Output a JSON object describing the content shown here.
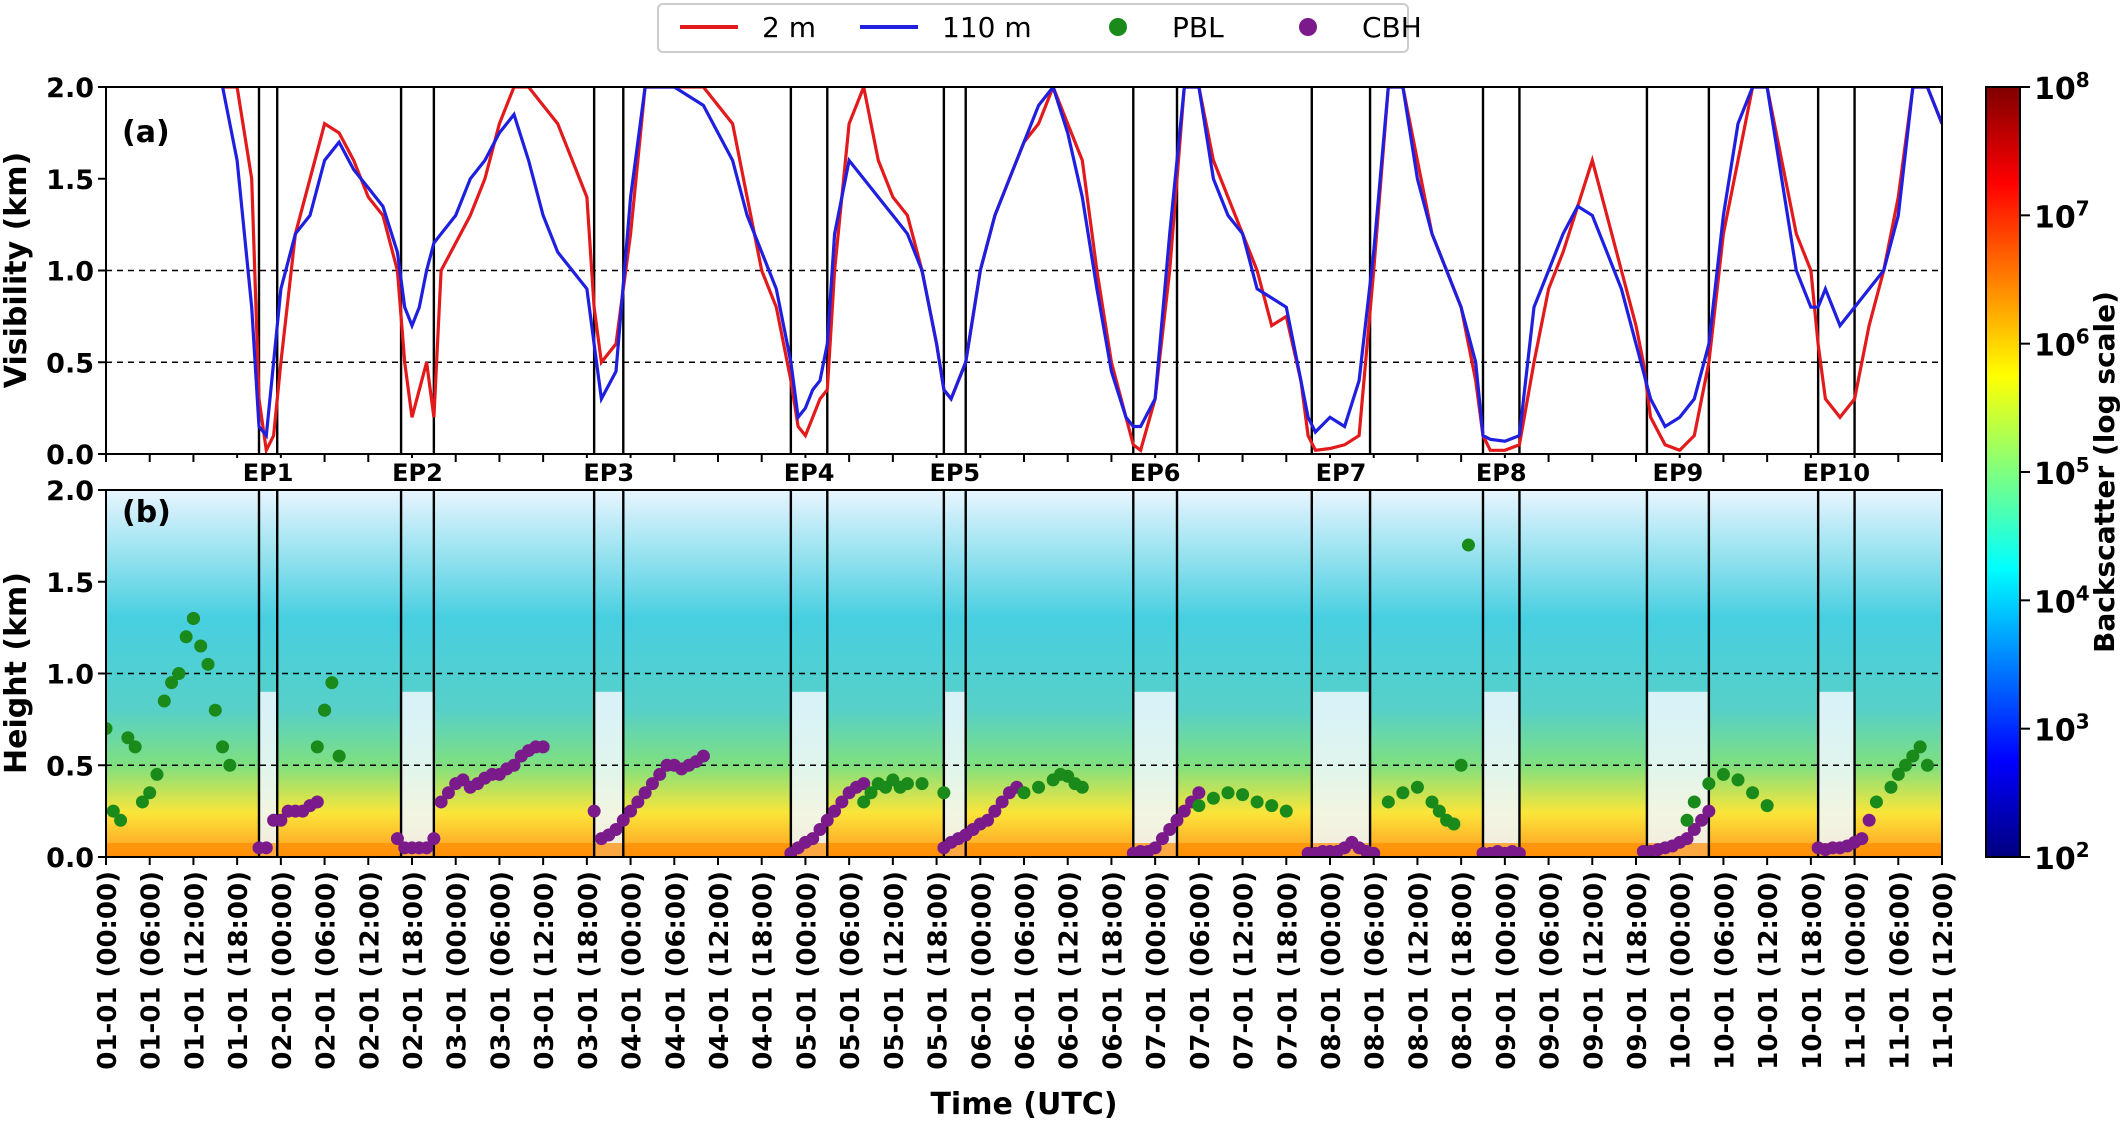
{
  "legend": {
    "placement": "top-center",
    "items": [
      {
        "name": "2 m",
        "kind": "line",
        "color": "#e31a1c"
      },
      {
        "name": "110 m",
        "kind": "line",
        "color": "#1f1fe0"
      },
      {
        "name": "PBL",
        "kind": "marker",
        "color": "#1a8a1a"
      },
      {
        "name": "CBH",
        "kind": "marker",
        "color": "#7b1a8a"
      }
    ]
  },
  "panel_a": {
    "label": "(a)",
    "ylabel": "Visibility (km)",
    "ylim": [
      0,
      2.0
    ],
    "yticks": [
      "0.0",
      "0.5",
      "1.0",
      "1.5",
      "2.0"
    ],
    "ytick_values": [
      0,
      0.5,
      1.0,
      1.5,
      2.0
    ],
    "dashed_lines": [
      0.5,
      1.0
    ]
  },
  "panel_b": {
    "label": "(b)",
    "ylabel": "Height (km)",
    "ylim": [
      0,
      2.0
    ],
    "yticks": [
      "0.0",
      "0.5",
      "1.0",
      "1.5",
      "2.0"
    ],
    "ytick_values": [
      0,
      0.5,
      1.0,
      1.5,
      2.0
    ],
    "dashed_lines": [
      0.5,
      1.0
    ]
  },
  "xaxis": {
    "title": "Time (UTC)",
    "range_hours": [
      0,
      252
    ],
    "tick_labels": [
      "01-01 (00:00)",
      "01-01 (06:00)",
      "01-01 (12:00)",
      "01-01 (18:00)",
      "02-01 (00:00)",
      "02-01 (06:00)",
      "02-01 (12:00)",
      "02-01 (18:00)",
      "03-01 (00:00)",
      "03-01 (06:00)",
      "03-01 (12:00)",
      "03-01 (18:00)",
      "04-01 (00:00)",
      "04-01 (06:00)",
      "04-01 (12:00)",
      "04-01 (18:00)",
      "05-01 (00:00)",
      "05-01 (06:00)",
      "05-01 (12:00)",
      "05-01 (18:00)",
      "06-01 (00:00)",
      "06-01 (06:00)",
      "06-01 (12:00)",
      "06-01 (18:00)",
      "07-01 (00:00)",
      "07-01 (06:00)",
      "07-01 (12:00)",
      "07-01 (18:00)",
      "08-01 (00:00)",
      "08-01 (06:00)",
      "08-01 (12:00)",
      "08-01 (18:00)",
      "09-01 (00:00)",
      "09-01 (06:00)",
      "09-01 (12:00)",
      "09-01 (18:00)",
      "10-01 (00:00)",
      "10-01 (06:00)",
      "10-01 (12:00)",
      "10-01 (18:00)",
      "11-01 (00:00)",
      "11-01 (06:00)",
      "11-01 (12:00)"
    ]
  },
  "colorbar": {
    "label": "Backscatter (log scale)",
    "scale": "log",
    "range": [
      100,
      100000000
    ],
    "ticks": [
      {
        "base": "10",
        "exp": "2"
      },
      {
        "base": "10",
        "exp": "3"
      },
      {
        "base": "10",
        "exp": "4"
      },
      {
        "base": "10",
        "exp": "5"
      },
      {
        "base": "10",
        "exp": "6"
      },
      {
        "base": "10",
        "exp": "7"
      },
      {
        "base": "10",
        "exp": "8"
      }
    ],
    "colormap": [
      "#00007f",
      "#0000ff",
      "#007fff",
      "#00ffff",
      "#7fff7f",
      "#ffff00",
      "#ff7f00",
      "#ff0000",
      "#7f0000"
    ]
  },
  "chart_data": {
    "type": "line",
    "x_unit": "hours",
    "episodes": [
      {
        "label": "EP1",
        "start": 21,
        "end": 23.5
      },
      {
        "label": "EP2",
        "start": 40.5,
        "end": 45
      },
      {
        "label": "EP3",
        "start": 67,
        "end": 71
      },
      {
        "label": "EP4",
        "start": 94,
        "end": 99
      },
      {
        "label": "EP5",
        "start": 115,
        "end": 118
      },
      {
        "label": "EP6",
        "start": 141,
        "end": 147
      },
      {
        "label": "EP7",
        "start": 165.5,
        "end": 173.5
      },
      {
        "label": "EP8",
        "start": 189,
        "end": 194
      },
      {
        "label": "EP9",
        "start": 211.5,
        "end": 220
      },
      {
        "label": "EP10",
        "start": 235,
        "end": 240
      }
    ],
    "series": [
      {
        "name": "2 m",
        "x": [
          16,
          18,
          20,
          21,
          22,
          23,
          24,
          26,
          28,
          30,
          32,
          34,
          36,
          38,
          40,
          41,
          42,
          43,
          44,
          45,
          46,
          48,
          50,
          52,
          54,
          56,
          58,
          60,
          62,
          64,
          66,
          67,
          68,
          70,
          72,
          74,
          78,
          82,
          86,
          88,
          90,
          92,
          94,
          95,
          96,
          97,
          98,
          99,
          100,
          102,
          104,
          106,
          108,
          110,
          112,
          114,
          115,
          116,
          117,
          118,
          120,
          122,
          124,
          126,
          128,
          130,
          132,
          134,
          136,
          138,
          140,
          141,
          142,
          144,
          146,
          148,
          150,
          152,
          154,
          156,
          158,
          160,
          162,
          164,
          165,
          166,
          168,
          170,
          172,
          174,
          176,
          178,
          180,
          182,
          184,
          186,
          188,
          189,
          190,
          192,
          194,
          196,
          198,
          200,
          202,
          204,
          206,
          208,
          210,
          211,
          212,
          214,
          216,
          218,
          220,
          222,
          224,
          226,
          228,
          230,
          232,
          234,
          235,
          236,
          238,
          240,
          242,
          244,
          246,
          248,
          250,
          252
        ],
        "y": [
          2.0,
          2.0,
          1.5,
          0.3,
          0.02,
          0.1,
          0.5,
          1.2,
          1.5,
          1.8,
          1.75,
          1.6,
          1.4,
          1.3,
          1.0,
          0.5,
          0.2,
          0.35,
          0.5,
          0.2,
          1.0,
          1.15,
          1.3,
          1.5,
          1.8,
          2.0,
          2.0,
          1.9,
          1.8,
          1.6,
          1.4,
          0.8,
          0.5,
          0.6,
          1.2,
          2.0,
          2.0,
          2.0,
          1.8,
          1.4,
          1.0,
          0.8,
          0.4,
          0.15,
          0.1,
          0.2,
          0.3,
          0.35,
          1.0,
          1.8,
          2.0,
          1.6,
          1.4,
          1.3,
          1.0,
          0.6,
          0.35,
          0.3,
          0.4,
          0.5,
          1.0,
          1.3,
          1.5,
          1.7,
          1.8,
          2.0,
          1.8,
          1.6,
          1.0,
          0.5,
          0.2,
          0.05,
          0.02,
          0.3,
          1.0,
          2.0,
          2.0,
          1.6,
          1.4,
          1.2,
          1.0,
          0.7,
          0.75,
          0.4,
          0.1,
          0.02,
          0.03,
          0.05,
          0.1,
          1.0,
          2.0,
          2.0,
          1.6,
          1.2,
          1.0,
          0.8,
          0.4,
          0.1,
          0.02,
          0.02,
          0.05,
          0.5,
          0.9,
          1.1,
          1.35,
          1.6,
          1.3,
          1.0,
          0.7,
          0.5,
          0.2,
          0.05,
          0.02,
          0.1,
          0.5,
          1.2,
          1.6,
          2.0,
          2.0,
          1.6,
          1.2,
          1.0,
          0.6,
          0.3,
          0.2,
          0.3,
          0.7,
          1.0,
          1.4,
          2.0,
          2.0,
          1.8
        ]
      },
      {
        "name": "110 m",
        "x": [
          16,
          18,
          20,
          21,
          22,
          23,
          24,
          26,
          28,
          30,
          32,
          34,
          36,
          38,
          40,
          41,
          42,
          43,
          44,
          45,
          46,
          48,
          50,
          52,
          54,
          56,
          58,
          60,
          62,
          64,
          66,
          67,
          68,
          70,
          72,
          74,
          78,
          82,
          86,
          88,
          90,
          92,
          94,
          95,
          96,
          97,
          98,
          99,
          100,
          102,
          104,
          106,
          108,
          110,
          112,
          114,
          115,
          116,
          117,
          118,
          120,
          122,
          124,
          126,
          128,
          130,
          132,
          134,
          136,
          138,
          140,
          141,
          142,
          144,
          146,
          148,
          150,
          152,
          154,
          156,
          158,
          160,
          162,
          164,
          165,
          166,
          168,
          170,
          172,
          174,
          176,
          178,
          180,
          182,
          184,
          186,
          188,
          189,
          190,
          192,
          194,
          196,
          198,
          200,
          202,
          204,
          206,
          208,
          210,
          211,
          212,
          214,
          216,
          218,
          220,
          222,
          224,
          226,
          228,
          230,
          232,
          234,
          235,
          236,
          238,
          240,
          242,
          244,
          246,
          248,
          250,
          252
        ],
        "y": [
          2.0,
          1.6,
          0.8,
          0.15,
          0.1,
          0.5,
          0.9,
          1.2,
          1.3,
          1.6,
          1.7,
          1.55,
          1.45,
          1.35,
          1.1,
          0.8,
          0.7,
          0.8,
          1.0,
          1.15,
          1.2,
          1.3,
          1.5,
          1.6,
          1.75,
          1.85,
          1.6,
          1.3,
          1.1,
          1.0,
          0.9,
          0.6,
          0.3,
          0.45,
          1.4,
          2.0,
          2.0,
          1.9,
          1.6,
          1.3,
          1.1,
          0.9,
          0.5,
          0.2,
          0.25,
          0.35,
          0.4,
          0.6,
          1.2,
          1.6,
          1.5,
          1.4,
          1.3,
          1.2,
          1.0,
          0.6,
          0.35,
          0.3,
          0.4,
          0.5,
          1.0,
          1.3,
          1.5,
          1.7,
          1.9,
          2.0,
          1.75,
          1.4,
          0.9,
          0.45,
          0.2,
          0.15,
          0.15,
          0.3,
          1.2,
          2.0,
          2.0,
          1.5,
          1.3,
          1.2,
          0.9,
          0.85,
          0.8,
          0.4,
          0.2,
          0.12,
          0.2,
          0.15,
          0.4,
          1.1,
          2.0,
          2.0,
          1.5,
          1.2,
          1.0,
          0.8,
          0.5,
          0.1,
          0.08,
          0.07,
          0.1,
          0.8,
          1.0,
          1.2,
          1.35,
          1.3,
          1.1,
          0.9,
          0.6,
          0.45,
          0.3,
          0.15,
          0.2,
          0.3,
          0.6,
          1.3,
          1.8,
          2.0,
          2.0,
          1.5,
          1.0,
          0.8,
          0.8,
          0.9,
          0.7,
          0.8,
          0.9,
          1.0,
          1.3,
          2.0,
          2.0,
          1.8
        ]
      }
    ],
    "pbl": {
      "x": [
        0,
        1,
        2,
        3,
        4,
        5,
        6,
        7,
        8,
        9,
        10,
        11,
        12,
        13,
        14,
        15,
        16,
        17,
        29,
        30,
        31,
        32,
        104,
        105,
        106,
        107,
        108,
        109,
        110,
        112,
        115,
        126,
        128,
        130,
        131,
        132,
        133,
        134,
        150,
        152,
        154,
        156,
        158,
        160,
        162,
        176,
        178,
        180,
        182,
        183,
        184,
        185,
        186,
        187,
        217,
        218,
        220,
        222,
        224,
        226,
        228,
        243,
        245,
        246,
        247,
        248,
        249,
        250
      ],
      "y": [
        0.7,
        0.25,
        0.2,
        0.65,
        0.6,
        0.3,
        0.35,
        0.45,
        0.85,
        0.95,
        1.0,
        1.2,
        1.3,
        1.15,
        1.05,
        0.8,
        0.6,
        0.5,
        0.6,
        0.8,
        0.95,
        0.55,
        0.3,
        0.35,
        0.4,
        0.38,
        0.42,
        0.38,
        0.4,
        0.4,
        0.35,
        0.35,
        0.38,
        0.42,
        0.45,
        0.44,
        0.4,
        0.38,
        0.28,
        0.32,
        0.35,
        0.34,
        0.3,
        0.28,
        0.25,
        0.3,
        0.35,
        0.38,
        0.3,
        0.25,
        0.2,
        0.18,
        0.5,
        1.7,
        0.2,
        0.3,
        0.4,
        0.45,
        0.42,
        0.35,
        0.28,
        0.3,
        0.38,
        0.45,
        0.5,
        0.55,
        0.6,
        0.5
      ]
    },
    "cbh": {
      "x": [
        12,
        21,
        22,
        23,
        24,
        25,
        26,
        27,
        28,
        29,
        30,
        40,
        41,
        42,
        43,
        44,
        45,
        46,
        47,
        48,
        49,
        50,
        51,
        52,
        53,
        54,
        55,
        56,
        57,
        58,
        59,
        60,
        67,
        68,
        69,
        70,
        71,
        72,
        73,
        74,
        75,
        76,
        77,
        78,
        79,
        80,
        81,
        82,
        94,
        95,
        96,
        97,
        98,
        99,
        100,
        101,
        102,
        103,
        104,
        115,
        116,
        117,
        118,
        119,
        120,
        121,
        122,
        123,
        124,
        125,
        141,
        142,
        143,
        144,
        145,
        146,
        147,
        148,
        149,
        150,
        165,
        166,
        167,
        168,
        169,
        170,
        171,
        172,
        173,
        174,
        189,
        190,
        191,
        192,
        193,
        194,
        211,
        212,
        213,
        214,
        215,
        216,
        217,
        218,
        219,
        220,
        235,
        236,
        237,
        238,
        239,
        240,
        241,
        242
      ],
      "y": [
        1.3,
        0.05,
        0.05,
        0.2,
        0.2,
        0.25,
        0.25,
        0.25,
        0.28,
        0.3,
        0.8,
        0.1,
        0.05,
        0.05,
        0.05,
        0.05,
        0.1,
        0.3,
        0.35,
        0.4,
        0.42,
        0.38,
        0.4,
        0.43,
        0.45,
        0.45,
        0.48,
        0.5,
        0.55,
        0.58,
        0.6,
        0.6,
        0.25,
        0.1,
        0.12,
        0.15,
        0.2,
        0.25,
        0.3,
        0.35,
        0.4,
        0.45,
        0.5,
        0.5,
        0.48,
        0.5,
        0.52,
        0.55,
        0.02,
        0.05,
        0.08,
        0.1,
        0.15,
        0.2,
        0.25,
        0.3,
        0.35,
        0.38,
        0.4,
        0.05,
        0.08,
        0.1,
        0.12,
        0.15,
        0.18,
        0.2,
        0.25,
        0.3,
        0.35,
        0.38,
        0.02,
        0.03,
        0.03,
        0.05,
        0.1,
        0.15,
        0.2,
        0.25,
        0.3,
        0.35,
        0.02,
        0.02,
        0.03,
        0.03,
        0.03,
        0.05,
        0.08,
        0.05,
        0.03,
        0.02,
        0.02,
        0.02,
        0.03,
        0.02,
        0.03,
        0.02,
        0.03,
        0.03,
        0.04,
        0.05,
        0.06,
        0.08,
        0.1,
        0.15,
        0.2,
        0.25,
        0.05,
        0.04,
        0.05,
        0.05,
        0.06,
        0.08,
        0.1,
        0.2
      ]
    }
  }
}
